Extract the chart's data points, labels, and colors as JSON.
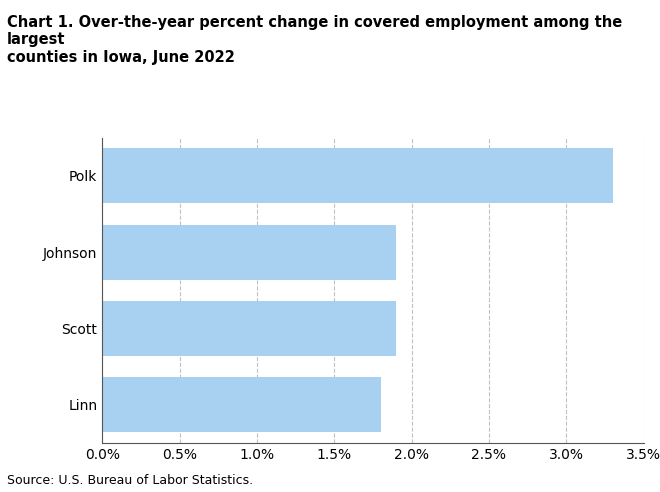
{
  "categories": [
    "Linn",
    "Scott",
    "Johnson",
    "Polk"
  ],
  "values": [
    0.018,
    0.019,
    0.019,
    0.033
  ],
  "bar_color": "#a8d0f0",
  "title": "Chart 1. Over-the-year percent change in covered employment among the largest\ncounties in Iowa, June 2022",
  "xlim": [
    0,
    0.035
  ],
  "xticks": [
    0.0,
    0.005,
    0.01,
    0.015,
    0.02,
    0.025,
    0.03,
    0.035
  ],
  "xtick_labels": [
    "0.0%",
    "0.5%",
    "1.0%",
    "1.5%",
    "2.0%",
    "2.5%",
    "3.0%",
    "3.5%"
  ],
  "source_text": "Source: U.S. Bureau of Labor Statistics.",
  "bar_height": 0.72,
  "title_fontsize": 10.5,
  "tick_fontsize": 10,
  "source_fontsize": 9,
  "background_color": "#ffffff",
  "grid_color": "#bbbbbb",
  "left_spine_color": "#555555",
  "bottom_spine_color": "#555555"
}
